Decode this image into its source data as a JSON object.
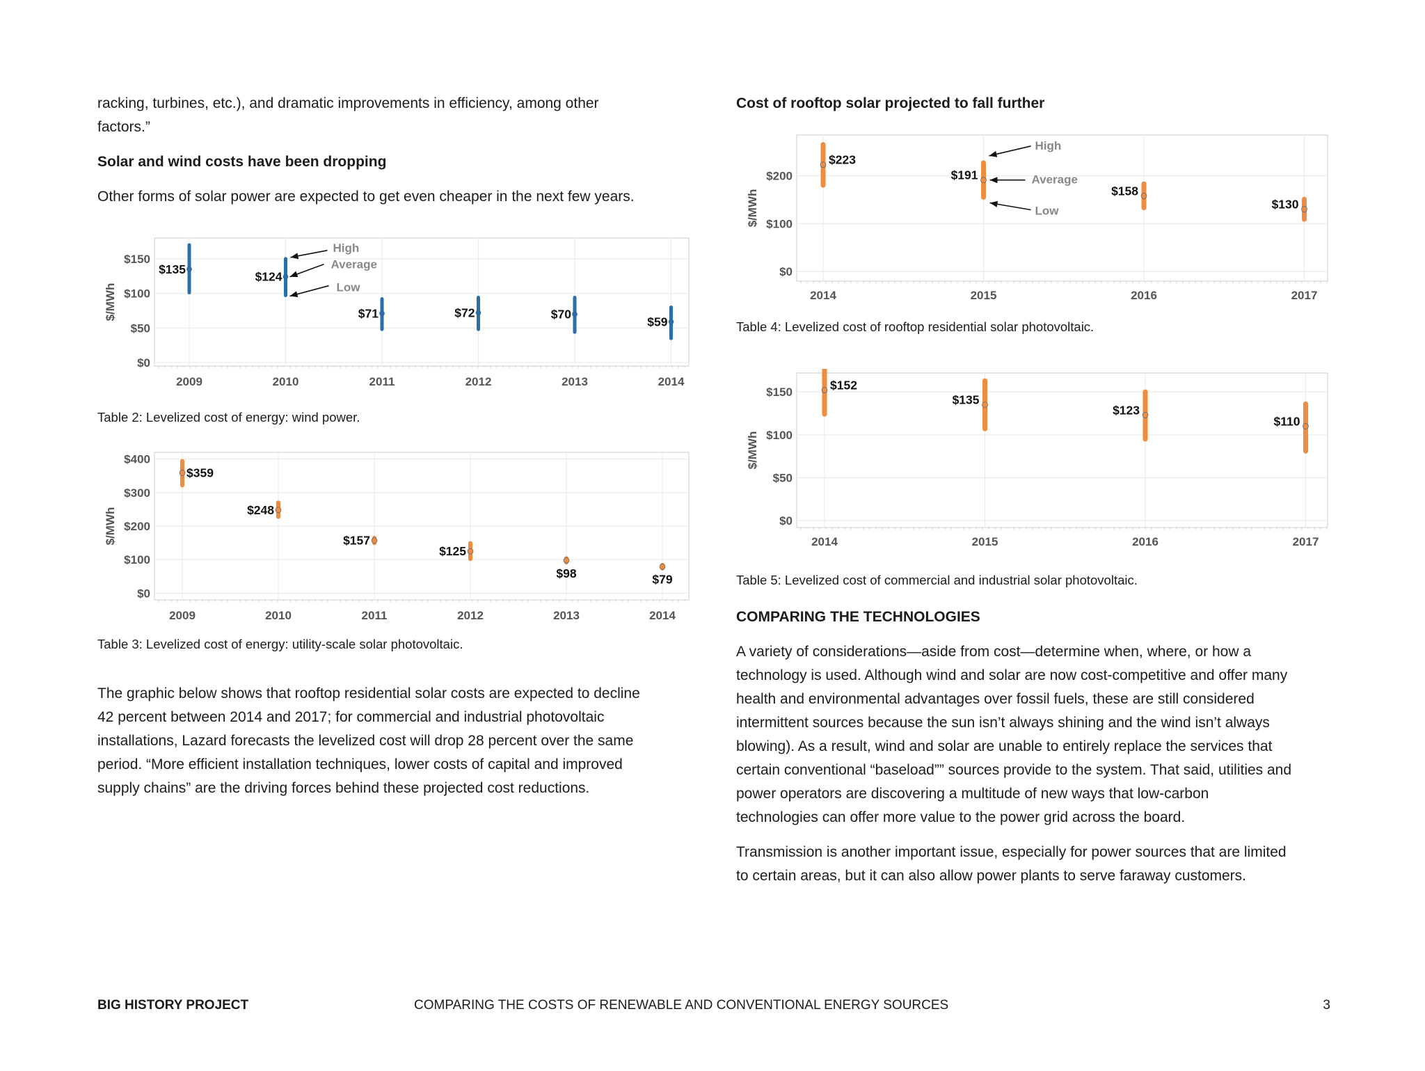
{
  "left": {
    "intro_line1": "racking, turbines, etc.), and dramatic improvements in efficiency, among other",
    "intro_line2": "factors.”",
    "heading1": "Solar and wind costs have been dropping",
    "para1": "Other forms of solar power are expected to get even cheaper in the next few years.",
    "caption2": "Table 2: Levelized cost of energy: wind power.",
    "caption3": "Table 3: Levelized cost of energy: utility-scale solar photovoltaic.",
    "para2_lines": [
      "The graphic below shows that rooftop residential solar costs are expected to decline",
      "42 percent between 2014 and 2017; for commercial and industrial photovoltaic",
      "installations, Lazard forecasts the levelized cost will drop 28 percent over the same",
      "period. “More efficient installation techniques, lower costs of capital and improved",
      "supply chains” are the driving forces behind these projected cost reductions."
    ]
  },
  "right": {
    "heading_rooftop": "Cost of rooftop solar projected to fall further",
    "caption4": "Table 4: Levelized cost of rooftop residential solar photovoltaic.",
    "caption5": "Table 5: Levelized cost of commercial and industrial solar photovoltaic.",
    "heading_compare": "COMPARING THE TECHNOLOGIES",
    "para_compare_lines": [
      "A variety of considerations—aside from cost—determine when, where, or how a",
      "technology is used. Although wind and solar are now cost-competitive and offer many",
      "health and environmental advantages over fossil fuels, these are still considered",
      "intermittent sources because the sun isn’t always shining and the wind isn’t always",
      "blowing). As a result, wind and solar are unable to entirely replace the services that",
      "certain conventional “baseload”” sources provide to the system. That said, utilities and",
      "power operators are discovering a multitude of new ways that low-carbon",
      "technologies can offer more value to the power grid across the board."
    ],
    "para_transmission_lines": [
      "Transmission is another important issue, especially for power sources that are limited",
      "to certain areas, but it can also allow power plants to serve faraway customers."
    ]
  },
  "footer": {
    "brand": "BIG HISTORY PROJECT",
    "title": "COMPARING THE COSTS OF RENEWABLE AND CONVENTIONAL ENERGY SOURCES",
    "page_number": "3"
  },
  "chart_data": [
    {
      "id": "wind",
      "type": "range",
      "title": "",
      "ylabel": "$/MWh",
      "categories": [
        "2009",
        "2010",
        "2011",
        "2012",
        "2013",
        "2014"
      ],
      "average": [
        135,
        124,
        71,
        72,
        70,
        59
      ],
      "high": [
        170,
        150,
        92,
        94,
        94,
        80
      ],
      "low": [
        101,
        97,
        48,
        48,
        44,
        35
      ],
      "labels": [
        "$135",
        "$124",
        "$71",
        "$72",
        "$70",
        "$59"
      ],
      "yticks": [
        0,
        50,
        100,
        150
      ],
      "ytick_labels": [
        "$0",
        "$50",
        "$100",
        "$150"
      ],
      "ylim": [
        -5,
        180
      ],
      "color": "#2b6ea8",
      "annotations": {
        "high": "High",
        "average": "Average",
        "low": "Low"
      }
    },
    {
      "id": "utility_solar",
      "type": "range",
      "title": "",
      "ylabel": "$/MWh",
      "categories": [
        "2009",
        "2010",
        "2011",
        "2012",
        "2013",
        "2014"
      ],
      "average": [
        359,
        248,
        157,
        125,
        98,
        79
      ],
      "high": [
        394,
        270,
        165,
        149,
        104,
        84
      ],
      "low": [
        322,
        228,
        150,
        102,
        92,
        74
      ],
      "labels": [
        "$359",
        "$248",
        "$157",
        "$125",
        "$98",
        "$79"
      ],
      "yticks": [
        0,
        100,
        200,
        300,
        400
      ],
      "ytick_labels": [
        "$0",
        "$100",
        "$200",
        "$300",
        "$400"
      ],
      "ylim": [
        -20,
        420
      ],
      "color": "#ef8c3f"
    },
    {
      "id": "rooftop_residential",
      "type": "range",
      "title": "",
      "ylabel": "$/MWh",
      "categories": [
        "2014",
        "2015",
        "2016",
        "2017"
      ],
      "average": [
        223,
        191,
        158,
        130
      ],
      "high": [
        265,
        227,
        183,
        151
      ],
      "low": [
        180,
        155,
        133,
        109
      ],
      "labels": [
        "$223",
        "$191",
        "$158",
        "$130"
      ],
      "yticks": [
        0,
        100,
        200
      ],
      "ytick_labels": [
        "$0",
        "$100",
        "$200"
      ],
      "ylim": [
        -20,
        285
      ],
      "color": "#ef8c3f",
      "annotations": {
        "high": "High",
        "average": "Average",
        "low": "Low"
      }
    },
    {
      "id": "commercial_industrial",
      "type": "range",
      "title": "",
      "ylabel": "$/MWh",
      "categories": [
        "2014",
        "2015",
        "2016",
        "2017"
      ],
      "average": [
        152,
        135,
        123,
        110
      ],
      "high": [
        178,
        163,
        150,
        136
      ],
      "low": [
        124,
        107,
        95,
        81
      ],
      "labels": [
        "$152",
        "$135",
        "$123",
        "$110"
      ],
      "yticks": [
        0,
        50,
        100,
        150
      ],
      "ytick_labels": [
        "$0",
        "$50",
        "$100",
        "$150"
      ],
      "ylim": [
        -8,
        172
      ],
      "color": "#ef8c3f"
    }
  ]
}
